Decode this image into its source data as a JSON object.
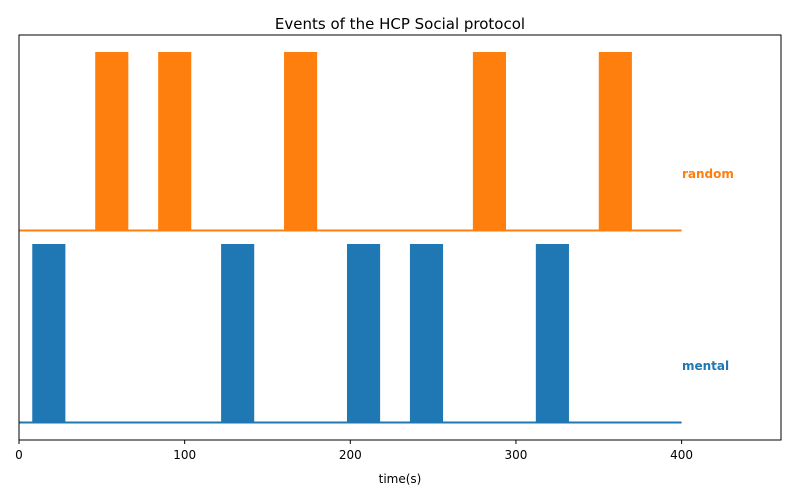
{
  "chart_data": {
    "type": "area",
    "title": "Events of the HCP Social protocol",
    "xlabel": "time(s)",
    "ylabel": "",
    "xlim": [
      0,
      460
    ],
    "x_ticks": [
      0,
      100,
      200,
      300,
      400
    ],
    "x_tick_labels": [
      "0",
      "100",
      "200",
      "300",
      "400"
    ],
    "grid": false,
    "legend": "none",
    "series": [
      {
        "name": "random",
        "color": "#ff7f0e",
        "baseline_end": 400,
        "blocks": [
          [
            46,
            66
          ],
          [
            84,
            104
          ],
          [
            160,
            180
          ],
          [
            274,
            294
          ],
          [
            350,
            370
          ]
        ]
      },
      {
        "name": "mental",
        "color": "#1f77b4",
        "baseline_end": 400,
        "blocks": [
          [
            8,
            28
          ],
          [
            122,
            142
          ],
          [
            198,
            218
          ],
          [
            236,
            256
          ],
          [
            312,
            332
          ]
        ]
      }
    ]
  }
}
